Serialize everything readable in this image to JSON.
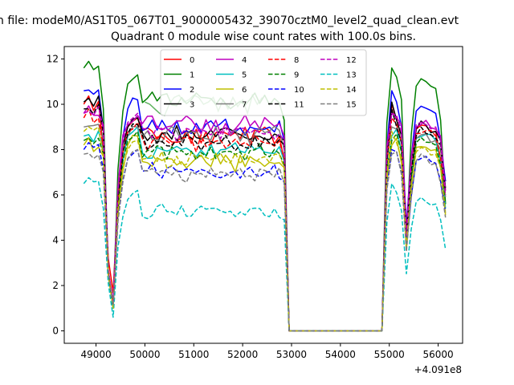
{
  "figure": {
    "suptitle": "n file: modeM0/AS1T05_067T01_9000005432_39070cztM0_level2_quad_clean.evt",
    "title": "Quadrant 0 module wise count rates with 100.0s bins.",
    "x_offset_label": "+4.091e8"
  },
  "chart_data": {
    "type": "line",
    "title": "Quadrant 0 module wise count rates with 100.0s bins.",
    "xlabel": "",
    "ylabel": "",
    "x_offset": 409100000,
    "xlim": [
      48350,
      56500
    ],
    "ylim": [
      -0.55,
      12.55
    ],
    "xticks": [
      49000,
      50000,
      51000,
      52000,
      53000,
      54000,
      55000,
      56000
    ],
    "xtick_labels": [
      "49000",
      "50000",
      "51000",
      "52000",
      "53000",
      "54000",
      "55000",
      "56000"
    ],
    "yticks": [
      0,
      2,
      4,
      6,
      8,
      10,
      12
    ],
    "ytick_labels": [
      "0",
      "2",
      "4",
      "6",
      "8",
      "10",
      "12"
    ],
    "grid": false,
    "legend": {
      "location": "upper center",
      "columns": 4
    },
    "series": [
      {
        "name": "0",
        "color": "#ff0000",
        "style": "solid",
        "base": 8.6,
        "amp": 0.35,
        "level_a": 10.0,
        "level_b": 9.3,
        "level_c": 8.0,
        "trough": 1.7,
        "end": 6.6
      },
      {
        "name": "1",
        "color": "#008000",
        "style": "solid",
        "base": 10.2,
        "amp": 0.35,
        "level_a": 11.6,
        "level_b": 11.2,
        "level_c": 9.8,
        "trough": 1.0,
        "end": 5.6
      },
      {
        "name": "2",
        "color": "#0000ff",
        "style": "solid",
        "base": 9.0,
        "amp": 0.3,
        "level_a": 10.6,
        "level_b": 10.1,
        "level_c": 8.9,
        "trough": 1.2,
        "end": 6.6
      },
      {
        "name": "3",
        "color": "#000000",
        "style": "solid",
        "base": 8.6,
        "amp": 0.35,
        "level_a": 10.1,
        "level_b": 9.3,
        "level_c": 8.9,
        "trough": 1.0,
        "end": 6.3
      },
      {
        "name": "4",
        "color": "#bf00bf",
        "style": "solid",
        "base": 9.1,
        "amp": 0.3,
        "level_a": 9.6,
        "level_b": 9.4,
        "level_c": 9.1,
        "trough": 1.1,
        "end": 6.2
      },
      {
        "name": "5",
        "color": "#00bfbf",
        "style": "solid",
        "base": 7.9,
        "amp": 0.3,
        "level_a": 8.6,
        "level_b": 8.9,
        "level_c": 8.0,
        "trough": 1.1,
        "end": 5.4
      },
      {
        "name": "6",
        "color": "#bfbf00",
        "style": "solid",
        "base": 7.4,
        "amp": 0.35,
        "level_a": 8.2,
        "level_b": 8.5,
        "level_c": 7.7,
        "trough": 1.1,
        "end": 5.1
      },
      {
        "name": "7",
        "color": "#7f7f7f",
        "style": "solid",
        "base": 8.6,
        "amp": 0.3,
        "level_a": 9.0,
        "level_b": 8.9,
        "level_c": 8.5,
        "trough": 1.0,
        "end": 5.9
      },
      {
        "name": "8",
        "color": "#ff0000",
        "style": "dashed",
        "base": 8.3,
        "amp": 0.3,
        "level_a": 9.4,
        "level_b": 9.1,
        "level_c": 8.1,
        "trough": 1.2,
        "end": 6.0
      },
      {
        "name": "9",
        "color": "#008000",
        "style": "dashed",
        "base": 7.9,
        "amp": 0.3,
        "level_a": 8.4,
        "level_b": 8.7,
        "level_c": 7.8,
        "trough": 1.0,
        "end": 5.6
      },
      {
        "name": "10",
        "color": "#0000ff",
        "style": "dashed",
        "base": 7.0,
        "amp": 0.3,
        "level_a": 8.0,
        "level_b": 7.9,
        "level_c": 7.1,
        "trough": 1.1,
        "end": 5.3
      },
      {
        "name": "11",
        "color": "#000000",
        "style": "dashed",
        "base": 8.3,
        "amp": 0.3,
        "level_a": 9.8,
        "level_b": 9.0,
        "level_c": 8.7,
        "trough": 1.1,
        "end": 6.1
      },
      {
        "name": "12",
        "color": "#bf00bf",
        "style": "dashed",
        "base": 8.8,
        "amp": 0.3,
        "level_a": 9.6,
        "level_b": 9.5,
        "level_c": 8.9,
        "trough": 1.2,
        "end": 6.0
      },
      {
        "name": "13",
        "color": "#00bfbf",
        "style": "dashed",
        "base": 5.3,
        "amp": 0.25,
        "level_a": 6.5,
        "level_b": 6.1,
        "level_c": 5.4,
        "trough": 0.6,
        "end": 3.6
      },
      {
        "name": "14",
        "color": "#bfbf00",
        "style": "dashed",
        "base": 7.6,
        "amp": 0.3,
        "level_a": 8.8,
        "level_b": 8.3,
        "level_c": 7.7,
        "trough": 1.0,
        "end": 5.2
      },
      {
        "name": "15",
        "color": "#7f7f7f",
        "style": "dashed",
        "base": 6.9,
        "amp": 0.3,
        "level_a": 7.8,
        "level_b": 7.9,
        "level_c": 7.0,
        "trough": 1.1,
        "end": 5.0
      }
    ],
    "highlight_series": {
      "name": "",
      "color": "#5fb35f",
      "points": [
        [
          50000,
          10.1
        ],
        [
          50100,
          10.0
        ],
        [
          50200,
          9.8
        ],
        [
          50300,
          9.6
        ],
        [
          50400,
          9.5
        ],
        [
          50500,
          10.0
        ],
        [
          50600,
          10.3
        ],
        [
          50700,
          10.4
        ],
        [
          50800,
          10.1
        ],
        [
          50900,
          10.2
        ],
        [
          51000,
          10.4
        ],
        [
          51100,
          10.3
        ],
        [
          51200,
          10.0
        ],
        [
          51300,
          10.1
        ],
        [
          51400,
          10.3
        ],
        [
          51500,
          9.7
        ],
        [
          51600,
          10.2
        ],
        [
          51700,
          9.8
        ],
        [
          51800,
          10.3
        ],
        [
          51900,
          9.9
        ],
        [
          52000,
          10.2
        ],
        [
          52100,
          9.6
        ],
        [
          52200,
          10.4
        ],
        [
          52300,
          10.0
        ],
        [
          52400,
          10.3
        ]
      ]
    }
  }
}
